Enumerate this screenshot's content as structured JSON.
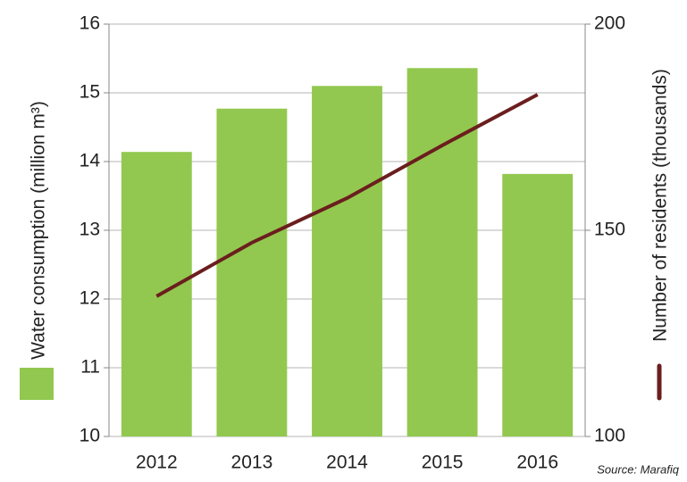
{
  "chart_data": {
    "type": "bar-line",
    "ylabel": "Water consumption (million m³)",
    "y2label": "Number of residents (thousands)",
    "source": "Source: Marafiq",
    "categories": [
      "2012",
      "2013",
      "2014",
      "2015",
      "2016"
    ],
    "series": [
      {
        "type": "bar",
        "color": "#92c84f",
        "values": [
          14.14,
          14.77,
          15.1,
          15.36,
          13.82
        ]
      },
      {
        "type": "line",
        "axis": "y2",
        "color": "#6b1e1e",
        "values": [
          134,
          147,
          157.8,
          170.6,
          182.9
        ]
      }
    ],
    "ylim": [
      10,
      16
    ],
    "yticks": [
      10,
      11,
      12,
      13,
      14,
      15,
      16
    ],
    "y2lim": [
      100,
      200
    ],
    "y2ticks": [
      100,
      150,
      200
    ],
    "grid": true
  }
}
